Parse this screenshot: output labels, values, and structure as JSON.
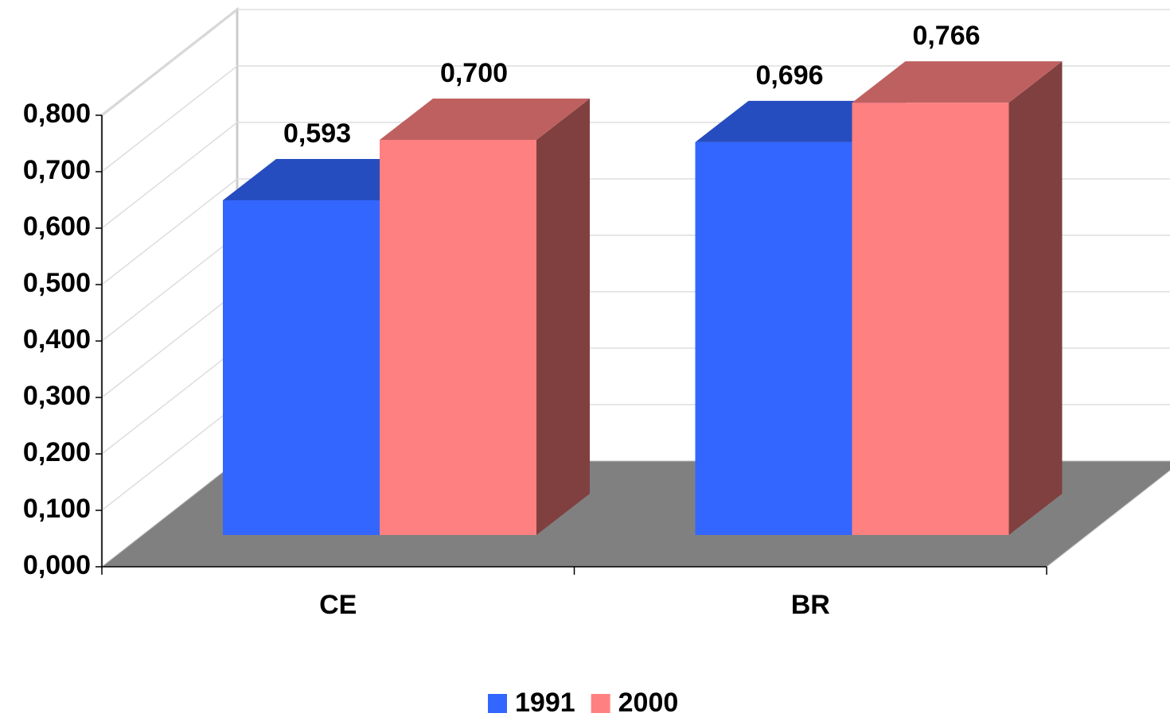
{
  "chart_data": {
    "type": "bar3d",
    "categories": [
      "CE",
      "BR"
    ],
    "series": [
      {
        "name": "1991",
        "color": "#3366ff",
        "values": [
          0.593,
          0.696
        ],
        "value_labels": [
          "0,593",
          "0,696"
        ]
      },
      {
        "name": "2000",
        "color": "#ff8080",
        "values": [
          0.7,
          0.766
        ],
        "value_labels": [
          "0,700",
          "0,766"
        ]
      }
    ],
    "ylim": [
      0,
      0.8
    ],
    "yticks": [
      {
        "value": 0,
        "label": "0,000"
      },
      {
        "value": 0.1,
        "label": "0,100"
      },
      {
        "value": 0.2,
        "label": "0,200"
      },
      {
        "value": 0.3,
        "label": "0,300"
      },
      {
        "value": 0.4,
        "label": "0,400"
      },
      {
        "value": 0.5,
        "label": "0,500"
      },
      {
        "value": 0.6,
        "label": "0,600"
      },
      {
        "value": 0.7,
        "label": "0,700"
      },
      {
        "value": 0.8,
        "label": "0,800"
      }
    ],
    "grid": true,
    "legend": "bottom"
  }
}
